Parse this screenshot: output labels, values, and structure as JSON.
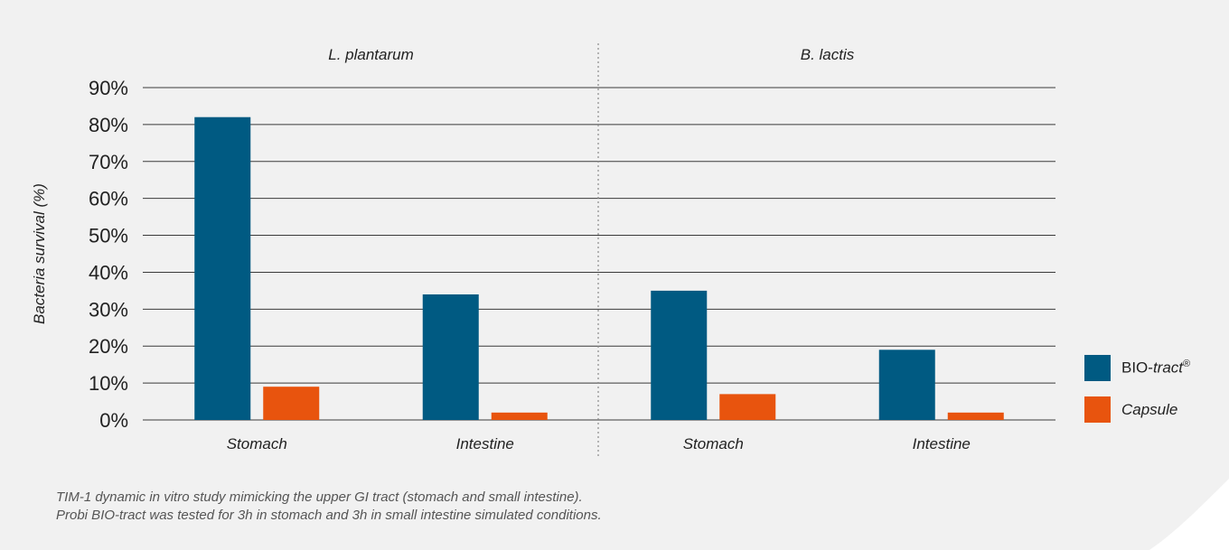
{
  "chart_data": {
    "type": "bar",
    "groups": [
      "L. plantarum",
      "B. lactis"
    ],
    "categories": [
      "Stomach",
      "Intestine",
      "Stomach",
      "Intestine"
    ],
    "category_group": [
      0,
      0,
      1,
      1
    ],
    "series": [
      {
        "name": "BIO-tract®",
        "label_main": "BIO-",
        "label_italic": "tract",
        "label_sup": "®",
        "color": "#005a82",
        "values": [
          82,
          34,
          35,
          19
        ]
      },
      {
        "name": "Capsule",
        "label_main": "",
        "label_italic": "Capsule",
        "label_sup": "",
        "color": "#e8540e",
        "values": [
          9,
          2,
          7,
          2
        ]
      }
    ],
    "ylabel": "Bacteria survival (%)",
    "yticks": [
      "0%",
      "10%",
      "20%",
      "30%",
      "40%",
      "50%",
      "60%",
      "70%",
      "80%",
      "90%"
    ],
    "ylim": [
      0,
      90
    ],
    "grid": true,
    "legend_position": "right"
  },
  "caption": {
    "line1": "TIM-1 dynamic in vitro study mimicking the upper GI tract (stomach and small intestine).",
    "line2": "Probi BIO-tract was tested for 3h in stomach and 3h in small intestine simulated conditions."
  }
}
